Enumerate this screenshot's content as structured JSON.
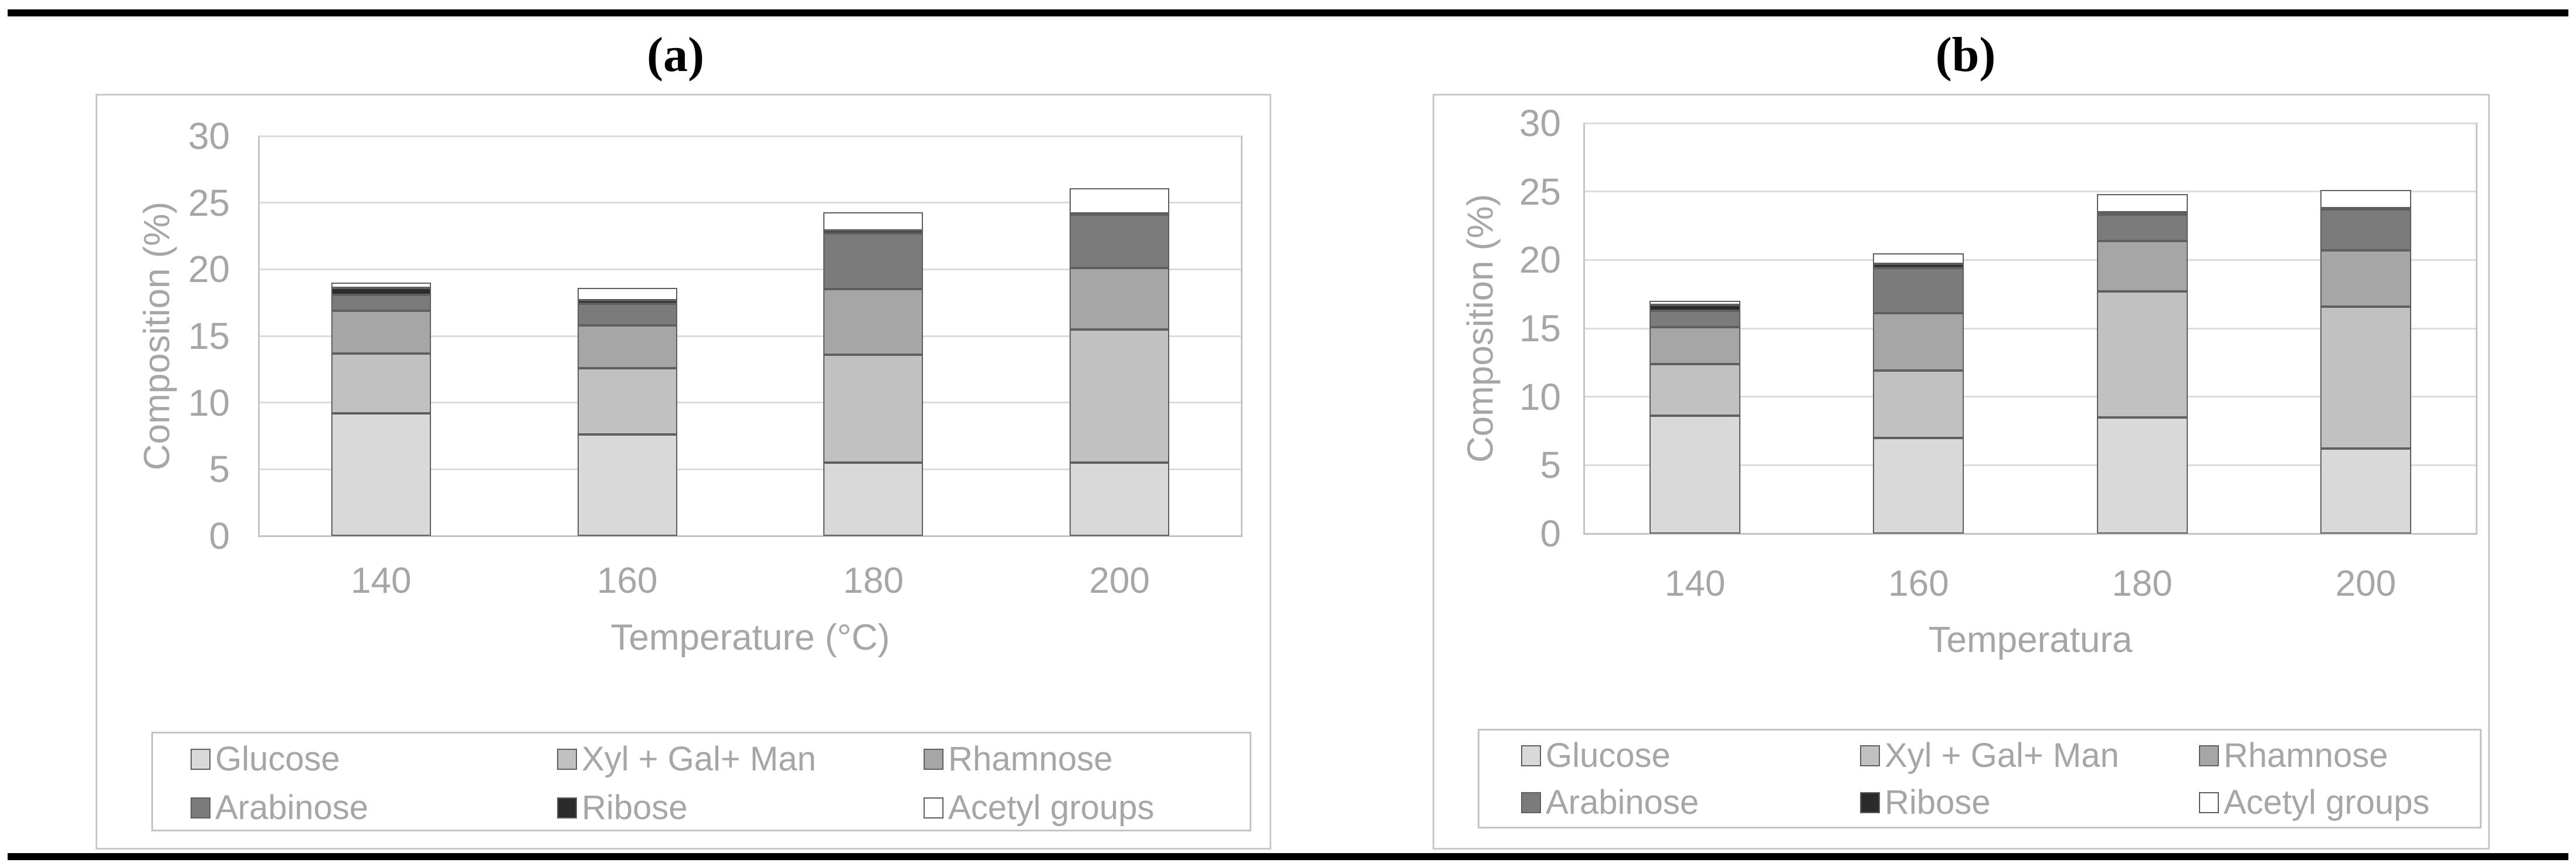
{
  "figure": {
    "top_rule": "black-horizontal-rule",
    "bottom_rule": "black-horizontal-rule"
  },
  "chart_data": [
    {
      "id": "a",
      "type": "bar",
      "stacked": true,
      "title": "(a)",
      "xlabel": "Temperature (°C)",
      "ylabel": "Composition (%)",
      "categories": [
        "140",
        "160",
        "180",
        "200"
      ],
      "series": [
        {
          "name": "Glucose",
          "color": "#d9d9d9",
          "values": [
            9.2,
            7.6,
            5.5,
            5.5
          ]
        },
        {
          "name": "Xyl + Gal+ Man",
          "color": "#c1c1c1",
          "values": [
            4.5,
            5.0,
            8.1,
            10.0
          ]
        },
        {
          "name": "Rhamnose",
          "color": "#a6a6a6",
          "values": [
            3.2,
            3.2,
            4.9,
            4.6
          ]
        },
        {
          "name": "Arabinose",
          "color": "#7b7b7b",
          "values": [
            1.2,
            1.6,
            4.2,
            4.0
          ]
        },
        {
          "name": "Ribose",
          "color": "#2b2b2b",
          "values": [
            0.5,
            0.3,
            0.2,
            0.1
          ]
        },
        {
          "name": "Acetyl groups",
          "color": "#ffffff",
          "values": [
            0.4,
            0.9,
            1.4,
            1.9
          ]
        }
      ],
      "totals": [
        19.0,
        18.6,
        24.3,
        26.1
      ],
      "ylim": [
        0,
        30
      ],
      "yticks": [
        0,
        5,
        10,
        15,
        20,
        25,
        30
      ],
      "grid": true,
      "legend_position": "bottom"
    },
    {
      "id": "b",
      "type": "bar",
      "stacked": true,
      "title": "(b)",
      "xlabel": "Temperatura",
      "ylabel": "Composition (%)",
      "categories": [
        "140",
        "160",
        "180",
        "200"
      ],
      "series": [
        {
          "name": "Glucose",
          "color": "#d9d9d9",
          "values": [
            8.6,
            7.0,
            8.5,
            6.2
          ]
        },
        {
          "name": "Xyl + Gal+ Man",
          "color": "#c1c1c1",
          "values": [
            3.8,
            4.9,
            9.2,
            10.4
          ]
        },
        {
          "name": "Rhamnose",
          "color": "#a6a6a6",
          "values": [
            2.7,
            4.2,
            3.7,
            4.1
          ]
        },
        {
          "name": "Arabinose",
          "color": "#7b7b7b",
          "values": [
            1.2,
            3.3,
            1.9,
            3.0
          ]
        },
        {
          "name": "Ribose",
          "color": "#2b2b2b",
          "values": [
            0.4,
            0.3,
            0.2,
            0.1
          ]
        },
        {
          "name": "Acetyl groups",
          "color": "#ffffff",
          "values": [
            0.3,
            0.8,
            1.3,
            1.3
          ]
        }
      ],
      "totals": [
        17.0,
        20.5,
        24.8,
        25.1
      ],
      "ylim": [
        0,
        30
      ],
      "yticks": [
        0,
        5,
        10,
        15,
        20,
        25,
        30
      ],
      "grid": true,
      "legend_position": "bottom"
    }
  ]
}
